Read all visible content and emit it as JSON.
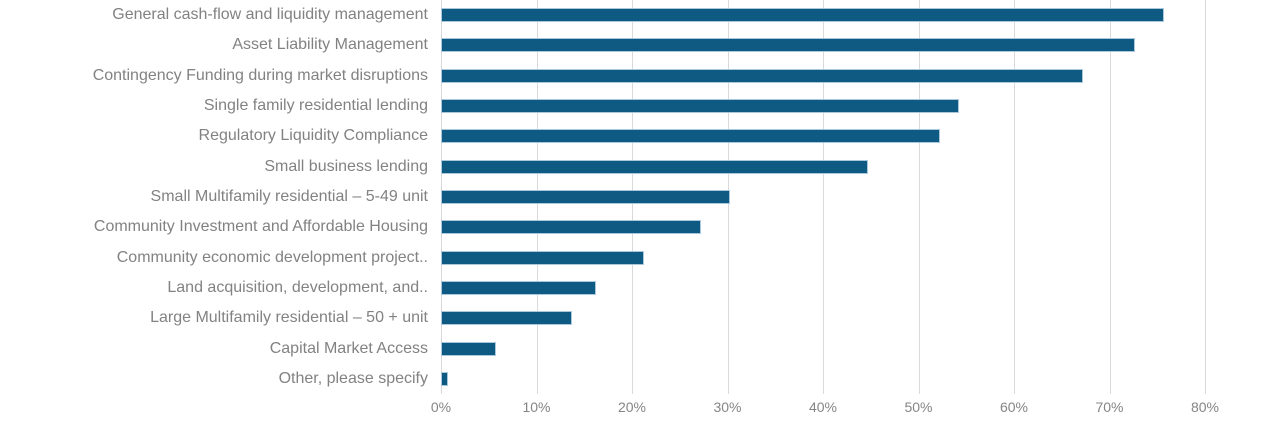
{
  "chart_data": {
    "type": "bar",
    "orientation": "horizontal",
    "title": "",
    "xlabel": "",
    "ylabel": "",
    "xlim": [
      0,
      80
    ],
    "grid": "vertical-only",
    "legend": "none",
    "categories": [
      "General cash-flow and liquidity management",
      "Asset Liability Management",
      "Contingency Funding during market disruptions",
      "Single family residential lending",
      "Regulatory Liquidity Compliance",
      "Small business lending",
      "Small Multifamily residential – 5-49 unit",
      "Community Investment and Affordable Housing",
      "Community economic development project..",
      "Land acquisition, development, and..",
      "Large Multifamily residential – 50 + unit",
      "Capital Market Access",
      "Other, please specify"
    ],
    "values": [
      75.5,
      72.5,
      67,
      54,
      52,
      44.5,
      30,
      27,
      21,
      16,
      13.5,
      5.5,
      0.5
    ],
    "value_unit": "%",
    "x_tick_labels": [
      "0%",
      "10%",
      "20%",
      "30%",
      "40%",
      "50%",
      "60%",
      "70%",
      "80%"
    ],
    "colors": {
      "bar_fill": "#0f5a82",
      "bar_border": "#a9c8dc",
      "gridline": "#d9d9d9",
      "category_label": "#828282",
      "tick_label": "#858585",
      "background": "#ffffff"
    }
  }
}
